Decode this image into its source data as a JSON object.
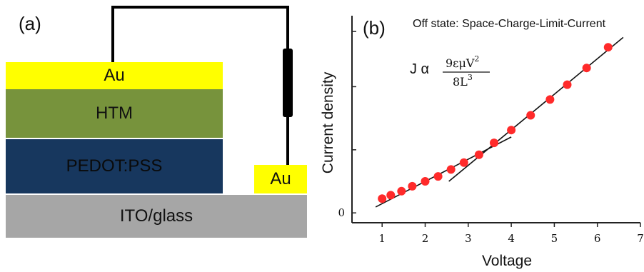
{
  "panel_a": {
    "label": "(a)",
    "layers": {
      "top_electrode": "Au",
      "htm": "HTM",
      "pedot": "PEDOT:PSS",
      "side_electrode": "Au",
      "substrate": "ITO/glass"
    },
    "colors": {
      "au": "#ffff00",
      "htm": "#77933c",
      "pedot": "#17375e",
      "substrate": "#a6a6a6"
    }
  },
  "panel_b": {
    "label": "(b)",
    "annotation": "Off state: Space-Charge-Limit-Current",
    "formula_lhs": "J α",
    "formula_numerator": "9εμV",
    "formula_exponent_num": "2",
    "formula_denominator": "8L",
    "formula_exponent_den": "3",
    "chart_data": {
      "type": "scatter",
      "xlabel": "Voltage",
      "ylabel": "Current  density",
      "x_ticks": [
        "1",
        "2",
        "3",
        "4",
        "5",
        "6",
        "7"
      ],
      "y_ticks": [
        "0"
      ],
      "xlim": [
        0.3,
        7.0
      ],
      "ylim": [
        -0.5,
        10
      ],
      "points": [
        {
          "x": 1.0,
          "y": 0.72
        },
        {
          "x": 1.2,
          "y": 0.9
        },
        {
          "x": 1.45,
          "y": 1.1
        },
        {
          "x": 1.7,
          "y": 1.35
        },
        {
          "x": 2.0,
          "y": 1.6
        },
        {
          "x": 2.3,
          "y": 1.85
        },
        {
          "x": 2.6,
          "y": 2.2
        },
        {
          "x": 2.9,
          "y": 2.55
        },
        {
          "x": 3.25,
          "y": 2.95
        },
        {
          "x": 3.6,
          "y": 3.55
        },
        {
          "x": 4.0,
          "y": 4.2
        },
        {
          "x": 4.45,
          "y": 4.95
        },
        {
          "x": 4.9,
          "y": 5.75
        },
        {
          "x": 5.3,
          "y": 6.5
        },
        {
          "x": 5.75,
          "y": 7.35
        },
        {
          "x": 6.25,
          "y": 8.4
        }
      ],
      "fit_lines": [
        {
          "name": "ohmic",
          "x": [
            0.85,
            4.0
          ],
          "y": [
            0.3,
            3.85
          ]
        },
        {
          "name": "sclc",
          "x": [
            2.55,
            6.6
          ],
          "y": [
            1.6,
            8.9
          ]
        }
      ],
      "colors": {
        "points": "#ff2a2a",
        "lines": "#111111",
        "axes": "#222222"
      }
    }
  }
}
